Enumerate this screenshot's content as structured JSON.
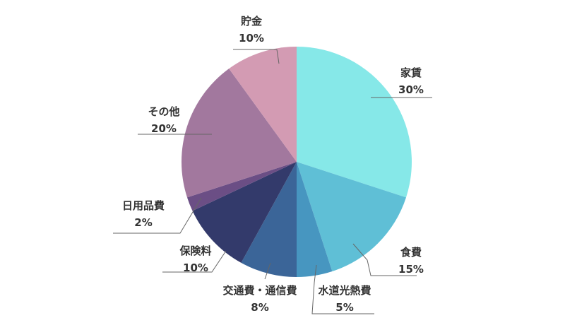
{
  "chart_data": {
    "type": "pie",
    "start_angle_deg": 0,
    "direction": "clockwise",
    "slices": [
      {
        "label": "家賃",
        "value": 30,
        "value_text": "30%",
        "color": "#86e8e8"
      },
      {
        "label": "食費",
        "value": 15,
        "value_text": "15%",
        "color": "#5fbfd6"
      },
      {
        "label": "水道光熱費",
        "value": 5,
        "value_text": "5%",
        "color": "#4796c0"
      },
      {
        "label": "交通費・通信費",
        "value": 8,
        "value_text": "8%",
        "color": "#3b6598"
      },
      {
        "label": "保険料",
        "value": 10,
        "value_text": "10%",
        "color": "#333a6b"
      },
      {
        "label": "日用品費",
        "value": 2,
        "value_text": "2%",
        "color": "#6b4e85"
      },
      {
        "label": "その他",
        "value": 20,
        "value_text": "20%",
        "color": "#a2789e"
      },
      {
        "label": "貯金",
        "value": 10,
        "value_text": "10%",
        "color": "#d39bb3"
      }
    ]
  }
}
